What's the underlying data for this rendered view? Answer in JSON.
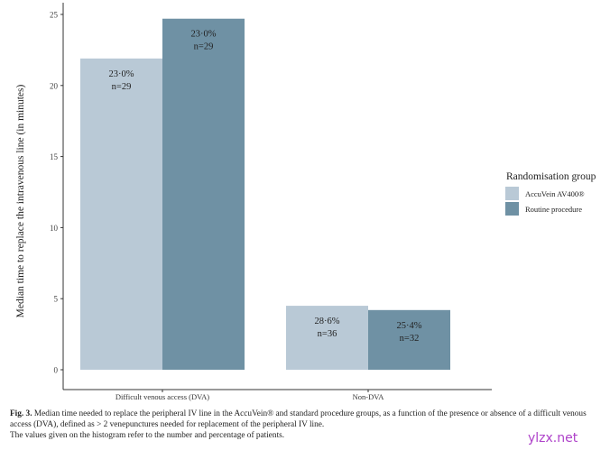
{
  "chart_data": {
    "type": "bar",
    "ylabel": "Median time to replace the intravenous line (in minutes)",
    "xlabel": "",
    "ylim": [
      0,
      25
    ],
    "yticks": [
      0,
      5,
      10,
      15,
      20,
      25
    ],
    "grid": false,
    "categories": [
      "Difficult venous access (DVA)",
      "Non-DVA"
    ],
    "legend": {
      "title": "Randomisation group",
      "placement": "right"
    },
    "series": [
      {
        "name": "AccuVein AV400®",
        "color": "#b9c9d6",
        "values": [
          21.9,
          4.5
        ],
        "labels": [
          [
            "23·0%",
            "n=29"
          ],
          [
            "28·6%",
            "n=36"
          ]
        ]
      },
      {
        "name": "Routine procedure",
        "color": "#6f91a4",
        "values": [
          24.7,
          4.2
        ],
        "labels": [
          [
            "23·0%",
            "n=29"
          ],
          [
            "25·4%",
            "n=32"
          ]
        ]
      }
    ]
  },
  "caption": {
    "label": "Fig. 3.",
    "text": "Median time needed to replace the peripheral IV line in the AccuVein® and standard procedure groups, as a function of the presence or absence of a difficult venous access (DVA), defined as > 2 venepunctures needed for replacement of the peripheral IV line.",
    "note": "The values given on the histogram refer to the number and percentage of patients."
  },
  "watermark": "ylzx.net"
}
